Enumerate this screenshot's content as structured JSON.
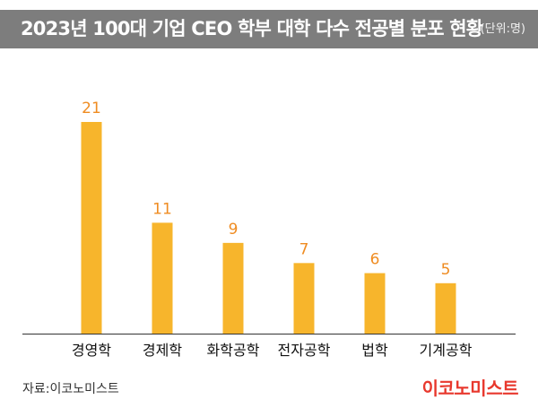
{
  "header": {
    "title": "2023년 100대 기업 CEO 학부 대학 다수 전공별 분포 현황",
    "unit": "(단위:명)"
  },
  "footer": {
    "source": "자료:이코노미스트",
    "brand": "이코노미스트"
  },
  "colors": {
    "bar": "#f7b52c",
    "value_label": "#ef8c22",
    "axis": "#333333",
    "title_bg": "#7d7d7d",
    "brand": "#e8382d"
  },
  "chart_data": {
    "type": "bar",
    "categories": [
      "경영학",
      "경제학",
      "화학공학",
      "전자공학",
      "법학",
      "기계공학"
    ],
    "values": [
      21,
      11,
      9,
      7,
      6,
      5
    ],
    "title": "2023년 100대 기업 CEO 학부 대학 다수 전공별 분포 현황",
    "unit": "(단위:명)",
    "xlabel": "",
    "ylabel": "",
    "ylim": [
      0,
      21
    ],
    "grid": false,
    "legend": "none"
  }
}
